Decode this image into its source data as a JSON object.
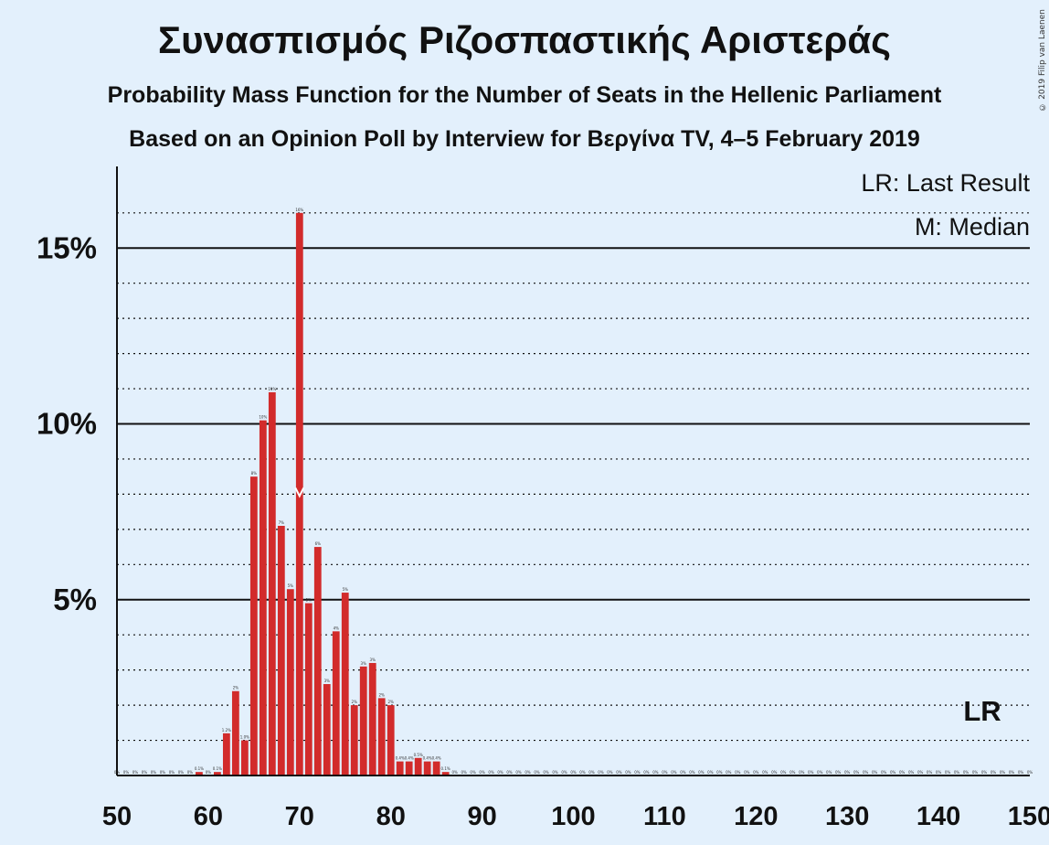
{
  "title": "Συνασπισμός Ριζοσπαστικής Αριστεράς",
  "subtitle1": "Probability Mass Function for the Number of Seats in the Hellenic Parliament",
  "subtitle2": "Based on an Opinion Poll by Interview for Βεργίνα TV, 4–5 February 2019",
  "copyright": "© 2019 Filip van Laenen",
  "legend": {
    "lr": "LR: Last Result",
    "m": "M: Median"
  },
  "lr_marker": "LR",
  "colors": {
    "bar": "#d22b2b",
    "background": "#e3f0fc",
    "axis": "#111111"
  },
  "chart_data": {
    "type": "bar",
    "x_range": [
      50,
      150
    ],
    "ylim": [
      0,
      17
    ],
    "x_ticks": [
      50,
      60,
      70,
      80,
      90,
      100,
      110,
      120,
      130,
      140,
      150
    ],
    "y_ticks": [
      {
        "value": 5,
        "label": "5%"
      },
      {
        "value": 10,
        "label": "10%"
      },
      {
        "value": 15,
        "label": "15%"
      }
    ],
    "grid": true,
    "median": 70,
    "last_result": 145,
    "seats": [
      59,
      61,
      62,
      63,
      64,
      65,
      66,
      67,
      68,
      69,
      70,
      71,
      72,
      73,
      74,
      75,
      76,
      77,
      78,
      79,
      80,
      81,
      82,
      83,
      84,
      85,
      86
    ],
    "values": [
      0.1,
      0.1,
      1.2,
      2.4,
      1.0,
      8.5,
      10.1,
      10.9,
      7.1,
      5.3,
      16.0,
      4.9,
      6.5,
      2.6,
      4.1,
      5.2,
      2.0,
      3.1,
      3.2,
      2.2,
      2.0,
      0.4,
      0.4,
      0.5,
      0.4,
      0.4,
      0.1
    ],
    "labels": [
      "0.1%",
      "0.1%",
      "1.2%",
      "2%",
      "1.0%",
      "8%",
      "10%",
      "11%",
      "7%",
      "5%",
      "16%",
      "5%",
      "6%",
      "3%",
      "4%",
      "5%",
      "2%",
      "3%",
      "3%",
      "2%",
      "2%",
      "0.4%",
      "0.4%",
      "0.5%",
      "0.4%",
      "0.4%",
      "0.1%"
    ],
    "zero_label": "0%"
  }
}
